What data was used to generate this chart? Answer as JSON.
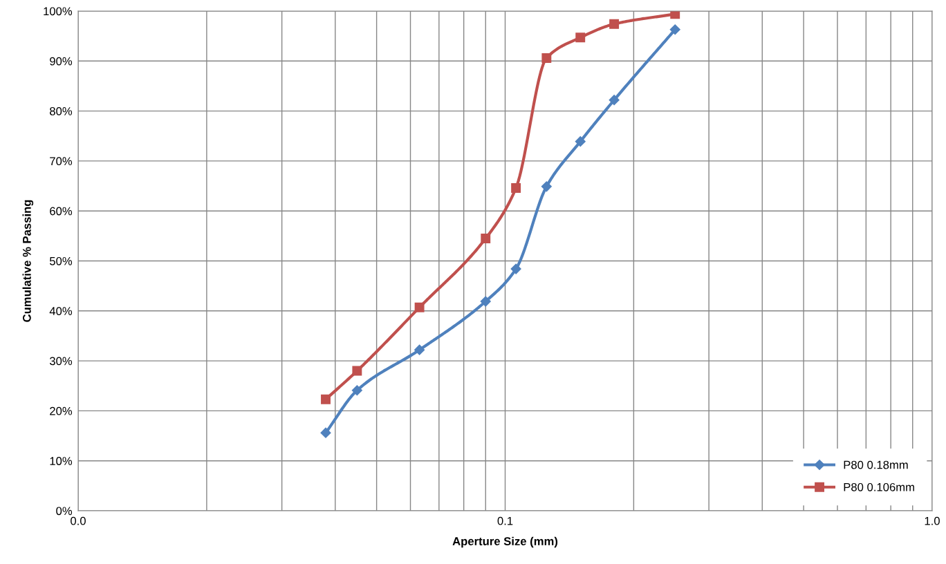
{
  "chart_data": {
    "type": "line",
    "xlabel": "Aperture Size (mm)",
    "ylabel": "Cumulative % Passing",
    "log": "x",
    "xlim": [
      0.01,
      1.0
    ],
    "xticks": [
      {
        "value": 0.01,
        "label": "0.0"
      },
      {
        "value": 0.02,
        "label": null
      },
      {
        "value": 0.03,
        "label": null
      },
      {
        "value": 0.04,
        "label": null
      },
      {
        "value": 0.05,
        "label": null
      },
      {
        "value": 0.06,
        "label": null
      },
      {
        "value": 0.07,
        "label": null
      },
      {
        "value": 0.08,
        "label": null
      },
      {
        "value": 0.09,
        "label": null
      },
      {
        "value": 0.1,
        "label": "0.1"
      },
      {
        "value": 0.2,
        "label": null
      },
      {
        "value": 0.3,
        "label": null
      },
      {
        "value": 0.4,
        "label": null
      },
      {
        "value": 0.5,
        "label": null
      },
      {
        "value": 0.6,
        "label": null
      },
      {
        "value": 0.7,
        "label": null
      },
      {
        "value": 0.8,
        "label": null
      },
      {
        "value": 0.9,
        "label": null
      },
      {
        "value": 1.0,
        "label": "1.0"
      }
    ],
    "ylim": [
      0,
      100
    ],
    "yticks": [
      {
        "value": 0,
        "label": "0%"
      },
      {
        "value": 10,
        "label": "10%"
      },
      {
        "value": 20,
        "label": "20%"
      },
      {
        "value": 30,
        "label": "30%"
      },
      {
        "value": 40,
        "label": "40%"
      },
      {
        "value": 50,
        "label": "50%"
      },
      {
        "value": 60,
        "label": "60%"
      },
      {
        "value": 70,
        "label": "70%"
      },
      {
        "value": 80,
        "label": "80%"
      },
      {
        "value": 90,
        "label": "90%"
      },
      {
        "value": 100,
        "label": "100%"
      }
    ],
    "grid": true,
    "legend": "bottom right",
    "x": [
      0.038,
      0.045,
      0.063,
      0.09,
      0.106,
      0.125,
      0.15,
      0.18,
      0.25
    ],
    "series": [
      {
        "name": "P80 0.18mm",
        "color": "#4f81bd",
        "marker": "diamond",
        "values": [
          15.6,
          24.1,
          32.2,
          41.9,
          48.4,
          64.9,
          73.9,
          82.2,
          96.3
        ]
      },
      {
        "name": "P80 0.106mm",
        "color": "#c0504d",
        "marker": "square",
        "values": [
          22.3,
          28.0,
          40.7,
          54.5,
          64.6,
          90.6,
          94.7,
          97.4,
          99.4
        ]
      }
    ]
  }
}
